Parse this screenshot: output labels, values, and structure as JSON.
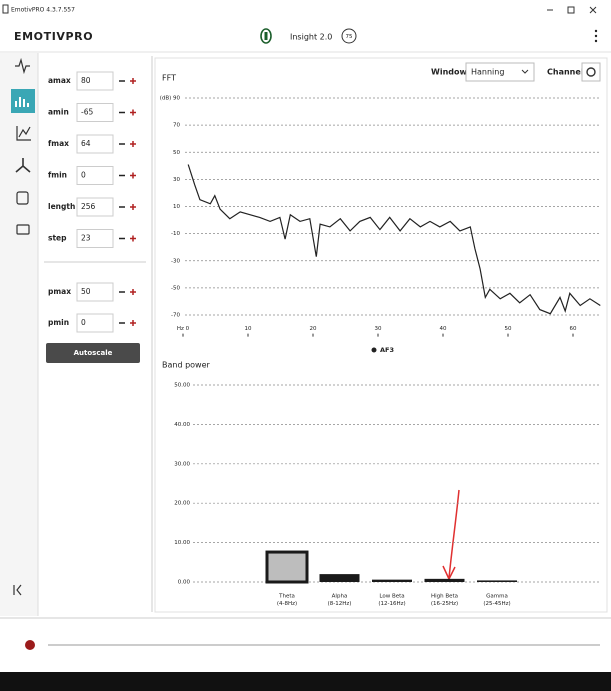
{
  "window_title": "EmotivPRO 4.3.7.557",
  "header": {
    "logo": "EMOTIVPRO",
    "device": "Insight 2.0",
    "battery": "75"
  },
  "settings": {
    "rows": [
      {
        "label": "amax",
        "value": 80
      },
      {
        "label": "amin",
        "value": -65
      },
      {
        "label": "fmax",
        "value": 64
      },
      {
        "label": "fmin",
        "value": 0
      },
      {
        "label": "length",
        "value": 256
      },
      {
        "label": "step",
        "value": 23
      }
    ],
    "power_rows": [
      {
        "label": "pmax",
        "value": 50
      },
      {
        "label": "pmin",
        "value": 0
      }
    ],
    "autoscale": "Autoscale"
  },
  "fft_controls": {
    "window_label": "Window",
    "window_value": "Hanning",
    "channel_label": "Channel"
  },
  "chart_data": [
    {
      "type": "line",
      "title": "FFT",
      "x": [
        0.8,
        1.8,
        2.6,
        4.2,
        4.9,
        5.7,
        7.2,
        8.8,
        10.3,
        11.8,
        13.4,
        14.9,
        15.7,
        16.5,
        18,
        19.5,
        20.5,
        21.1,
        22.6,
        24.2,
        25.7,
        27.2,
        28.8,
        30.3,
        31.8,
        33.4,
        34.9,
        36.5,
        38,
        39.5,
        41.1,
        42.6,
        44.2,
        44.9,
        45.7,
        46.5,
        47.2,
        48.8,
        50.3,
        51.8,
        53.4,
        54.9,
        56.5,
        58,
        58.8,
        59.5,
        61.1,
        62.6,
        64.2
      ],
      "series": [
        {
          "name": "AF3",
          "color": "#222222",
          "values": [
            41,
            26,
            15,
            12,
            18,
            8,
            1,
            6,
            4,
            2,
            -1,
            2,
            -14,
            4,
            -1,
            1,
            -27,
            -3,
            -5,
            1,
            -8,
            -1,
            2,
            -7,
            2,
            -8,
            1,
            -5,
            -1,
            -5,
            -1,
            -8,
            -5,
            -21,
            -36,
            -57,
            -51,
            -58,
            -54,
            -61,
            -55,
            -66,
            -69,
            -57,
            -67,
            -54,
            -63,
            -58,
            -63
          ]
        }
      ],
      "xlim": [
        0,
        65
      ],
      "xticks": [
        {
          "value": 0,
          "label": "Hz 0"
        },
        10,
        20,
        30,
        40,
        50,
        60
      ],
      "ylim": [
        -80,
        90
      ],
      "yticks": [
        {
          "value": 90,
          "label": "(dB) 90"
        },
        70,
        50,
        30,
        10,
        -10,
        -30,
        -50,
        -70
      ],
      "grid": true,
      "legend": "bottom"
    },
    {
      "type": "bar",
      "title": "Band power",
      "categories": [
        "Theta",
        "Alpha",
        "Low Beta",
        "High Beta",
        "Gamma"
      ],
      "category_ranges": [
        "(4-8Hz)",
        "(8-12Hz)",
        "(12-16Hz)",
        "(16-25Hz)",
        "(25-45Hz)"
      ],
      "values": [
        7.6,
        2.0,
        0.6,
        0.8,
        0.4
      ],
      "color": "#1a1a1a",
      "selected_index": 0,
      "ylim": [
        0,
        51
      ],
      "yticks": [
        {
          "value": 0,
          "label": "0.00"
        },
        {
          "value": 10,
          "label": "10.00"
        },
        {
          "value": 20,
          "label": "20.00"
        },
        {
          "value": 30,
          "label": "30.00"
        },
        {
          "value": 40,
          "label": "40.00"
        },
        {
          "value": 50,
          "label": "50.00"
        }
      ],
      "grid": true
    }
  ]
}
